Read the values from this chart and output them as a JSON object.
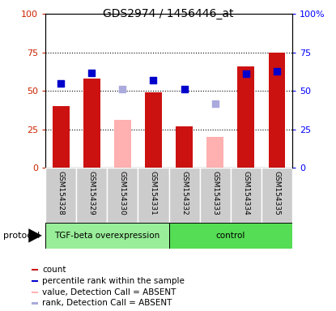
{
  "title": "GDS2974 / 1456446_at",
  "samples": [
    "GSM154328",
    "GSM154329",
    "GSM154330",
    "GSM154331",
    "GSM154332",
    "GSM154333",
    "GSM154334",
    "GSM154335"
  ],
  "count_values": [
    40,
    58,
    null,
    49,
    27,
    null,
    66,
    75
  ],
  "count_absent_values": [
    null,
    null,
    31,
    null,
    null,
    20,
    null,
    null
  ],
  "rank_values": [
    55,
    62,
    null,
    57,
    51,
    null,
    61,
    63
  ],
  "rank_absent_values": [
    null,
    null,
    51,
    null,
    null,
    42,
    null,
    null
  ],
  "bar_color_present": "#cc1111",
  "bar_color_absent": "#ffb0b0",
  "dot_color_present": "#0000cc",
  "dot_color_absent": "#aaaadd",
  "protocol_groups": [
    {
      "label": "TGF-beta overexpression",
      "start": 0,
      "end": 4,
      "color": "#99ee99"
    },
    {
      "label": "control",
      "start": 4,
      "end": 8,
      "color": "#55dd55"
    }
  ],
  "ylim": [
    0,
    100
  ],
  "yticks": [
    0,
    25,
    50,
    75,
    100
  ],
  "col_bg": "#cccccc",
  "col_border": "#ffffff",
  "plot_bg": "#ffffff"
}
